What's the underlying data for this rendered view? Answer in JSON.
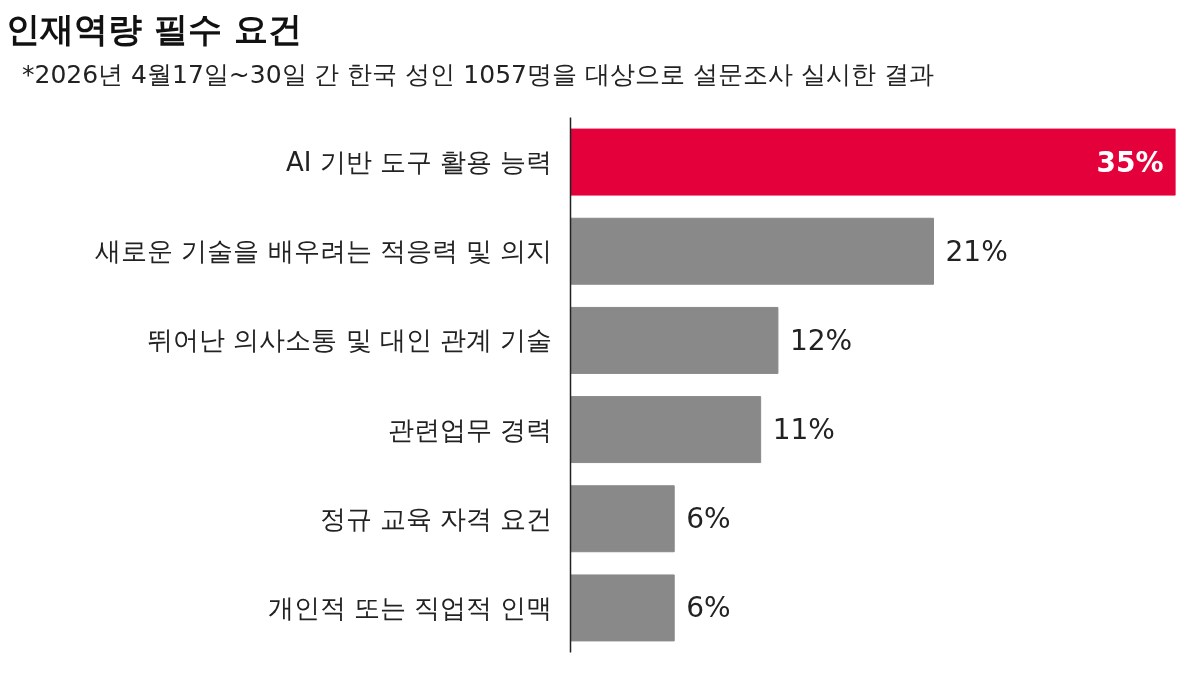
{
  "chart_data": {
    "type": "bar",
    "orientation": "horizontal",
    "title": "인재역량 필수 요건",
    "subtitle": "*2026년 4월17일~30일 간 한국 성인 1057명을 대상으로 설문조사 실시한 결과",
    "categories": [
      "AI 기반 도구 활용 능력",
      "새로운 기술을 배우려는 적응력 및 의지",
      "뛰어난 의사소통 및 대인 관계 기술",
      "관련업무 경력",
      "정규 교육 자격 요건",
      "개인적 또는 직업적 인맥"
    ],
    "values": [
      35,
      21,
      12,
      11,
      6,
      6
    ],
    "colors": [
      "#e4003a",
      "#898989",
      "#898989",
      "#898989",
      "#898989",
      "#898989"
    ],
    "value_labels": [
      "35%",
      "21%",
      "12%",
      "11%",
      "6%",
      "6%"
    ],
    "grid": false
  }
}
